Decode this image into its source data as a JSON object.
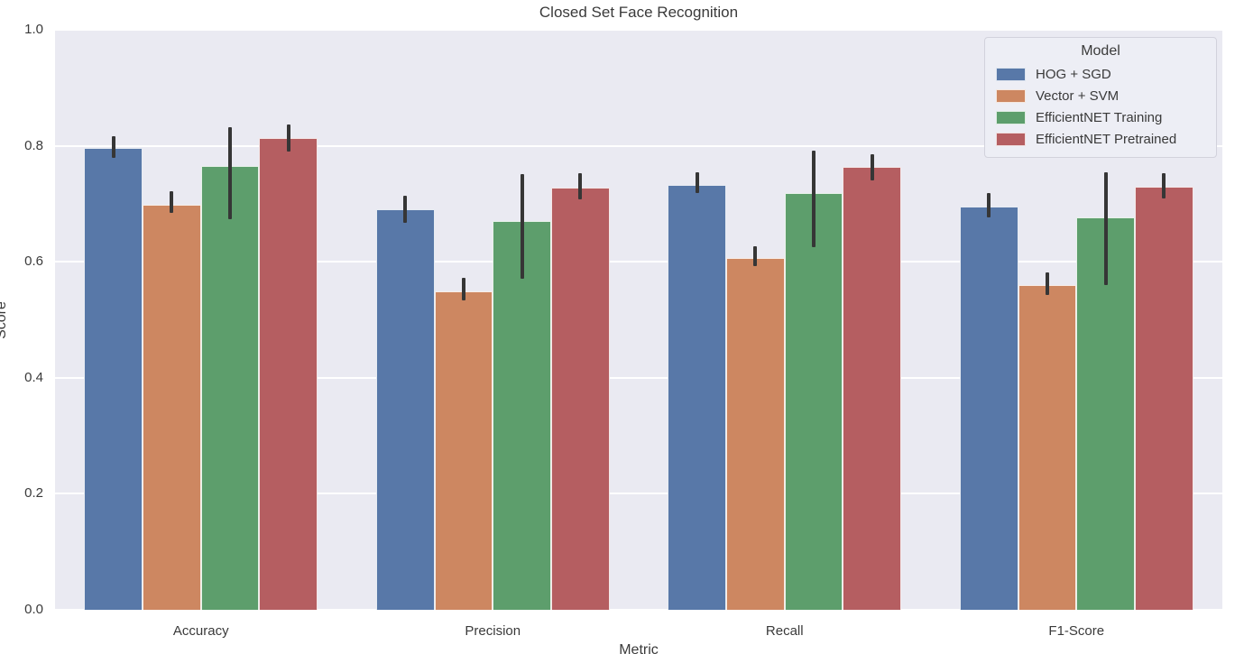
{
  "chart_data": {
    "type": "bar",
    "title": "Closed Set Face Recognition",
    "xlabel": "Metric",
    "ylabel": "Score",
    "legend_title": "Model",
    "legend_position": "upper-right",
    "categories": [
      "Accuracy",
      "Precision",
      "Recall",
      "F1-Score"
    ],
    "ylim": [
      0.0,
      1.0
    ],
    "yticks": [
      0.0,
      0.2,
      0.4,
      0.6,
      0.8,
      1.0
    ],
    "ytick_labels": [
      "0.0",
      "0.2",
      "0.4",
      "0.6",
      "0.8",
      "1.0"
    ],
    "grid": true,
    "plot_background_color": "#eaeaf2",
    "gridline_color": "#ffffff",
    "errorbar_color": "#363636",
    "series": [
      {
        "name": "HOG + SGD",
        "color": "#5878a8",
        "values": [
          0.797,
          0.691,
          0.733,
          0.695
        ],
        "error_low": [
          0.779,
          0.667,
          0.718,
          0.677
        ],
        "error_high": [
          0.816,
          0.714,
          0.755,
          0.719
        ]
      },
      {
        "name": "Vector + SVM",
        "color": "#cd8761",
        "values": [
          0.698,
          0.549,
          0.607,
          0.56
        ],
        "error_low": [
          0.684,
          0.533,
          0.593,
          0.543
        ],
        "error_high": [
          0.721,
          0.573,
          0.627,
          0.582
        ]
      },
      {
        "name": "EfficientNET Training",
        "color": "#5d9e6c",
        "values": [
          0.765,
          0.67,
          0.718,
          0.676
        ],
        "error_low": [
          0.674,
          0.57,
          0.625,
          0.56
        ],
        "error_high": [
          0.832,
          0.751,
          0.792,
          0.755
        ]
      },
      {
        "name": "EfficientNET Pretrained",
        "color": "#b55e61",
        "values": [
          0.813,
          0.728,
          0.763,
          0.729
        ],
        "error_low": [
          0.79,
          0.708,
          0.74,
          0.709
        ],
        "error_high": [
          0.837,
          0.753,
          0.786,
          0.753
        ]
      }
    ]
  }
}
